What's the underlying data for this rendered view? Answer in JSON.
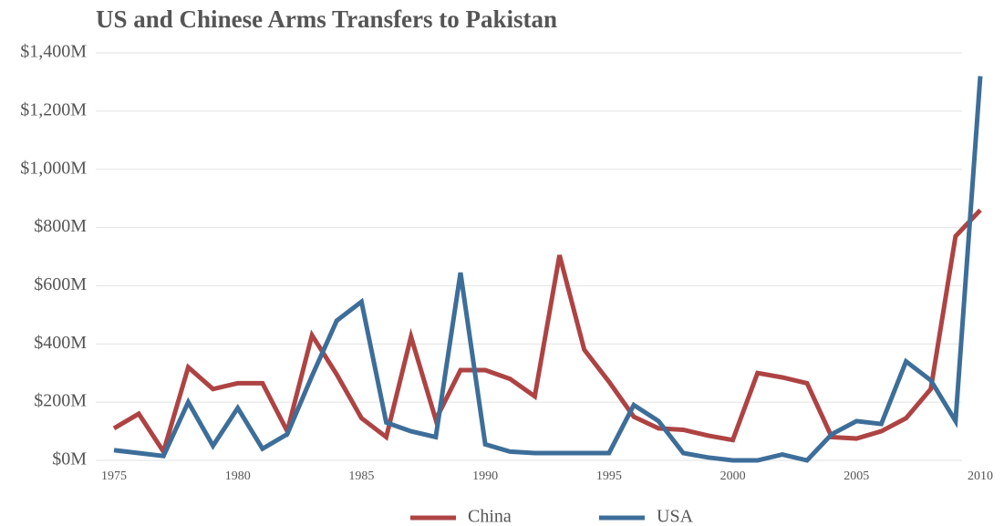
{
  "chart_data": {
    "type": "line",
    "title": "US and Chinese Arms Transfers to Pakistan",
    "x": [
      1975,
      1976,
      1977,
      1978,
      1979,
      1980,
      1981,
      1982,
      1983,
      1984,
      1985,
      1986,
      1987,
      1988,
      1989,
      1990,
      1991,
      1992,
      1993,
      1994,
      1995,
      1996,
      1997,
      1998,
      1999,
      2000,
      2001,
      2002,
      2003,
      2004,
      2005,
      2006,
      2007,
      2008,
      2009,
      2010
    ],
    "series": [
      {
        "name": "China",
        "color": "#ae4343",
        "values": [
          110,
          160,
          30,
          320,
          245,
          265,
          265,
          100,
          430,
          295,
          145,
          80,
          425,
          140,
          310,
          310,
          280,
          220,
          705,
          380,
          270,
          150,
          110,
          105,
          85,
          70,
          300,
          285,
          265,
          80,
          75,
          100,
          145,
          245,
          770,
          860
        ]
      },
      {
        "name": "USA",
        "color": "#3d6e99",
        "values": [
          35,
          25,
          15,
          200,
          50,
          180,
          40,
          90,
          290,
          480,
          545,
          130,
          100,
          80,
          645,
          55,
          30,
          25,
          25,
          25,
          25,
          190,
          135,
          25,
          10,
          0,
          0,
          20,
          0,
          90,
          135,
          125,
          340,
          275,
          135,
          1320
        ]
      }
    ],
    "xlim": [
      1975,
      2010
    ],
    "xticks": [
      1975,
      1980,
      1985,
      1990,
      1995,
      2000,
      2005,
      2010
    ],
    "ylim": [
      0,
      1400
    ],
    "yticks": [
      {
        "value": 0,
        "label": "$0M"
      },
      {
        "value": 200,
        "label": "$200M"
      },
      {
        "value": 400,
        "label": "$400M"
      },
      {
        "value": 600,
        "label": "$600M"
      },
      {
        "value": 800,
        "label": "$800M"
      },
      {
        "value": 1000,
        "label": "$1,000M"
      },
      {
        "value": 1200,
        "label": "$1,200M"
      },
      {
        "value": 1400,
        "label": "$1,400M"
      }
    ],
    "grid": true,
    "legend": "bottom"
  }
}
